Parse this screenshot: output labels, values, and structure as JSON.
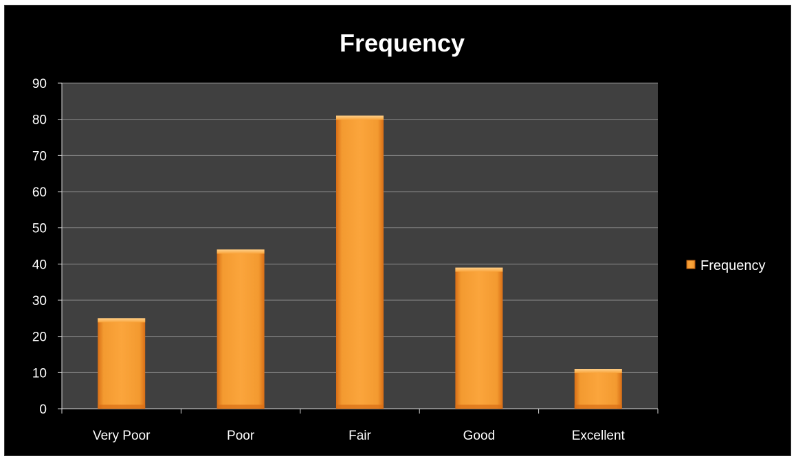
{
  "chart_data": {
    "type": "bar",
    "title": "Frequency",
    "xlabel": "",
    "ylabel": "",
    "categories": [
      "Very Poor",
      "Poor",
      "Fair",
      "Good",
      "Excellent"
    ],
    "series": [
      {
        "name": "Frequency",
        "values": [
          25,
          44,
          81,
          39,
          11
        ]
      }
    ],
    "ylim": [
      0,
      90
    ],
    "yticks": [
      0,
      10,
      20,
      30,
      40,
      50,
      60,
      70,
      80,
      90
    ],
    "grid": true,
    "legend": "right",
    "colors": {
      "background": "#000000",
      "plot_area": "#404040",
      "bar_light": "#f9a33a",
      "bar_dark": "#d86e16",
      "gridline": "#8c8c8c",
      "text": "#ffffff"
    }
  }
}
